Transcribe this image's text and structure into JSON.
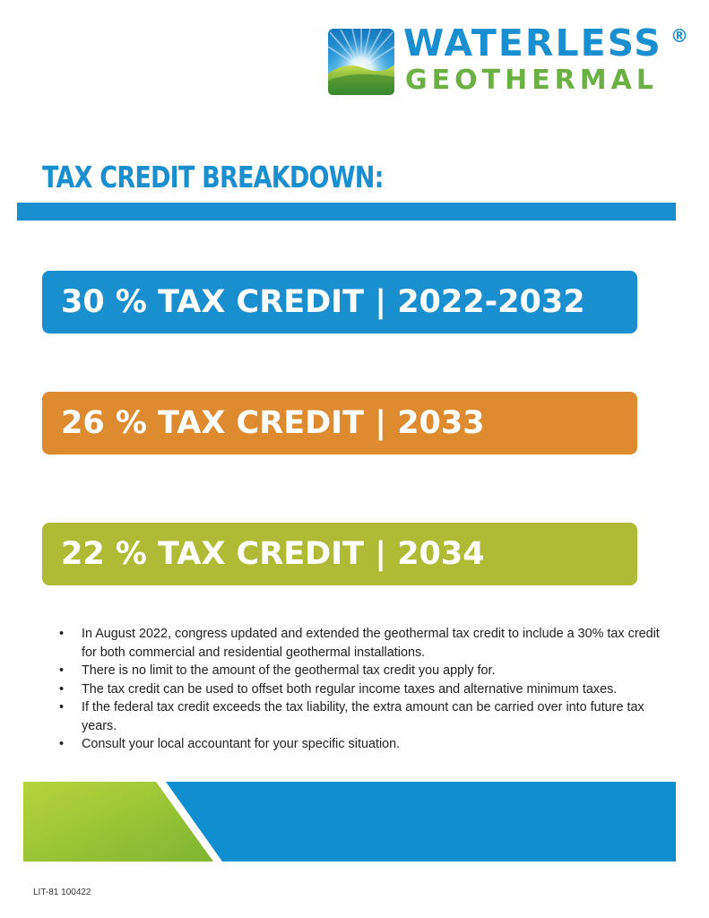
{
  "logo": {
    "word_1": "WATERLESS",
    "registered_mark": "®",
    "word_2": "GEOTHERMAL"
  },
  "heading": "TAX CREDIT BREAKDOWN:",
  "credits": [
    {
      "label": "30 % TAX CREDIT | 2022-2032",
      "color": "#1a8fd0"
    },
    {
      "label": "26 % TAX CREDIT | 2033",
      "color": "#de8a2f"
    },
    {
      "label": "22 % TAX CREDIT | 2034",
      "color": "#b0bb35"
    }
  ],
  "bullet_symbol": "•",
  "bullets": [
    "In August 2022, congress updated and extended the geothermal tax credit to include a 30% tax credit for both commercial and residential geothermal installations.",
    "There is no limit to the amount of the geothermal tax credit you apply for.",
    "The tax credit can be used to offset both regular income taxes and alternative minimum taxes.",
    "If the federal tax credit exceeds the tax liability, the extra amount can be carried over into future tax years.",
    "Consult your local accountant for your specific situation."
  ],
  "footer_code": "LIT-81 100422",
  "colors": {
    "brand_blue": "#1a8fd0",
    "brand_green": "#6ab042",
    "banner_green": "#9cc43a",
    "banner_blue": "#0f8fd0"
  }
}
